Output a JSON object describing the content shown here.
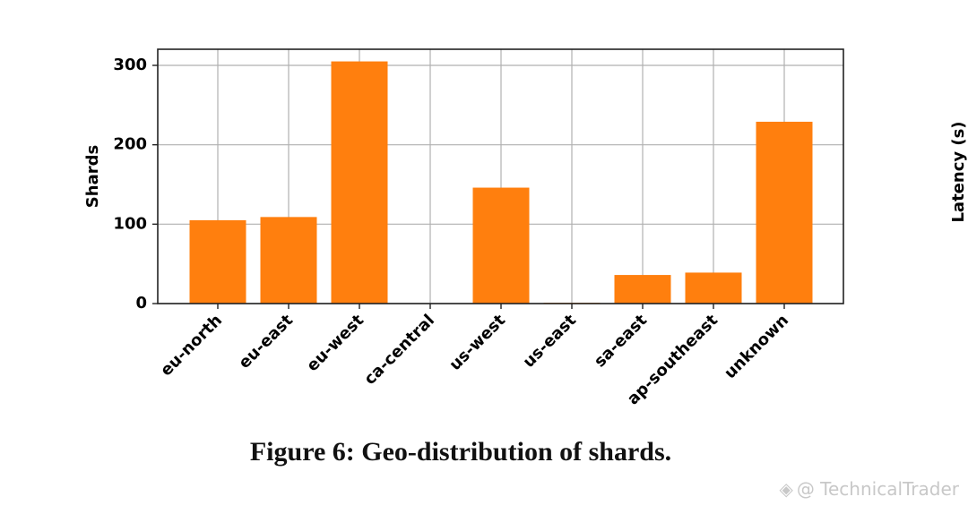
{
  "chart_data": {
    "type": "bar",
    "categories": [
      "eu-north",
      "eu-east",
      "eu-west",
      "ca-central",
      "us-west",
      "us-east",
      "sa-east",
      "ap-southeast",
      "unknown"
    ],
    "values": [
      105,
      109,
      305,
      0,
      146,
      1,
      36,
      39,
      229
    ],
    "ylabel": "Shards",
    "xlabel": "",
    "ylim": [
      0,
      320
    ],
    "yticks": [
      0,
      100,
      200,
      300
    ],
    "grid": true,
    "bar_color": "#ff7f0e"
  },
  "caption": "Figure 6: Geo-distribution of shards.",
  "side_axis_label": "Latency (s)",
  "watermark": "@ TechnicalTrader",
  "watermark_icon": "diamond-logo-icon"
}
